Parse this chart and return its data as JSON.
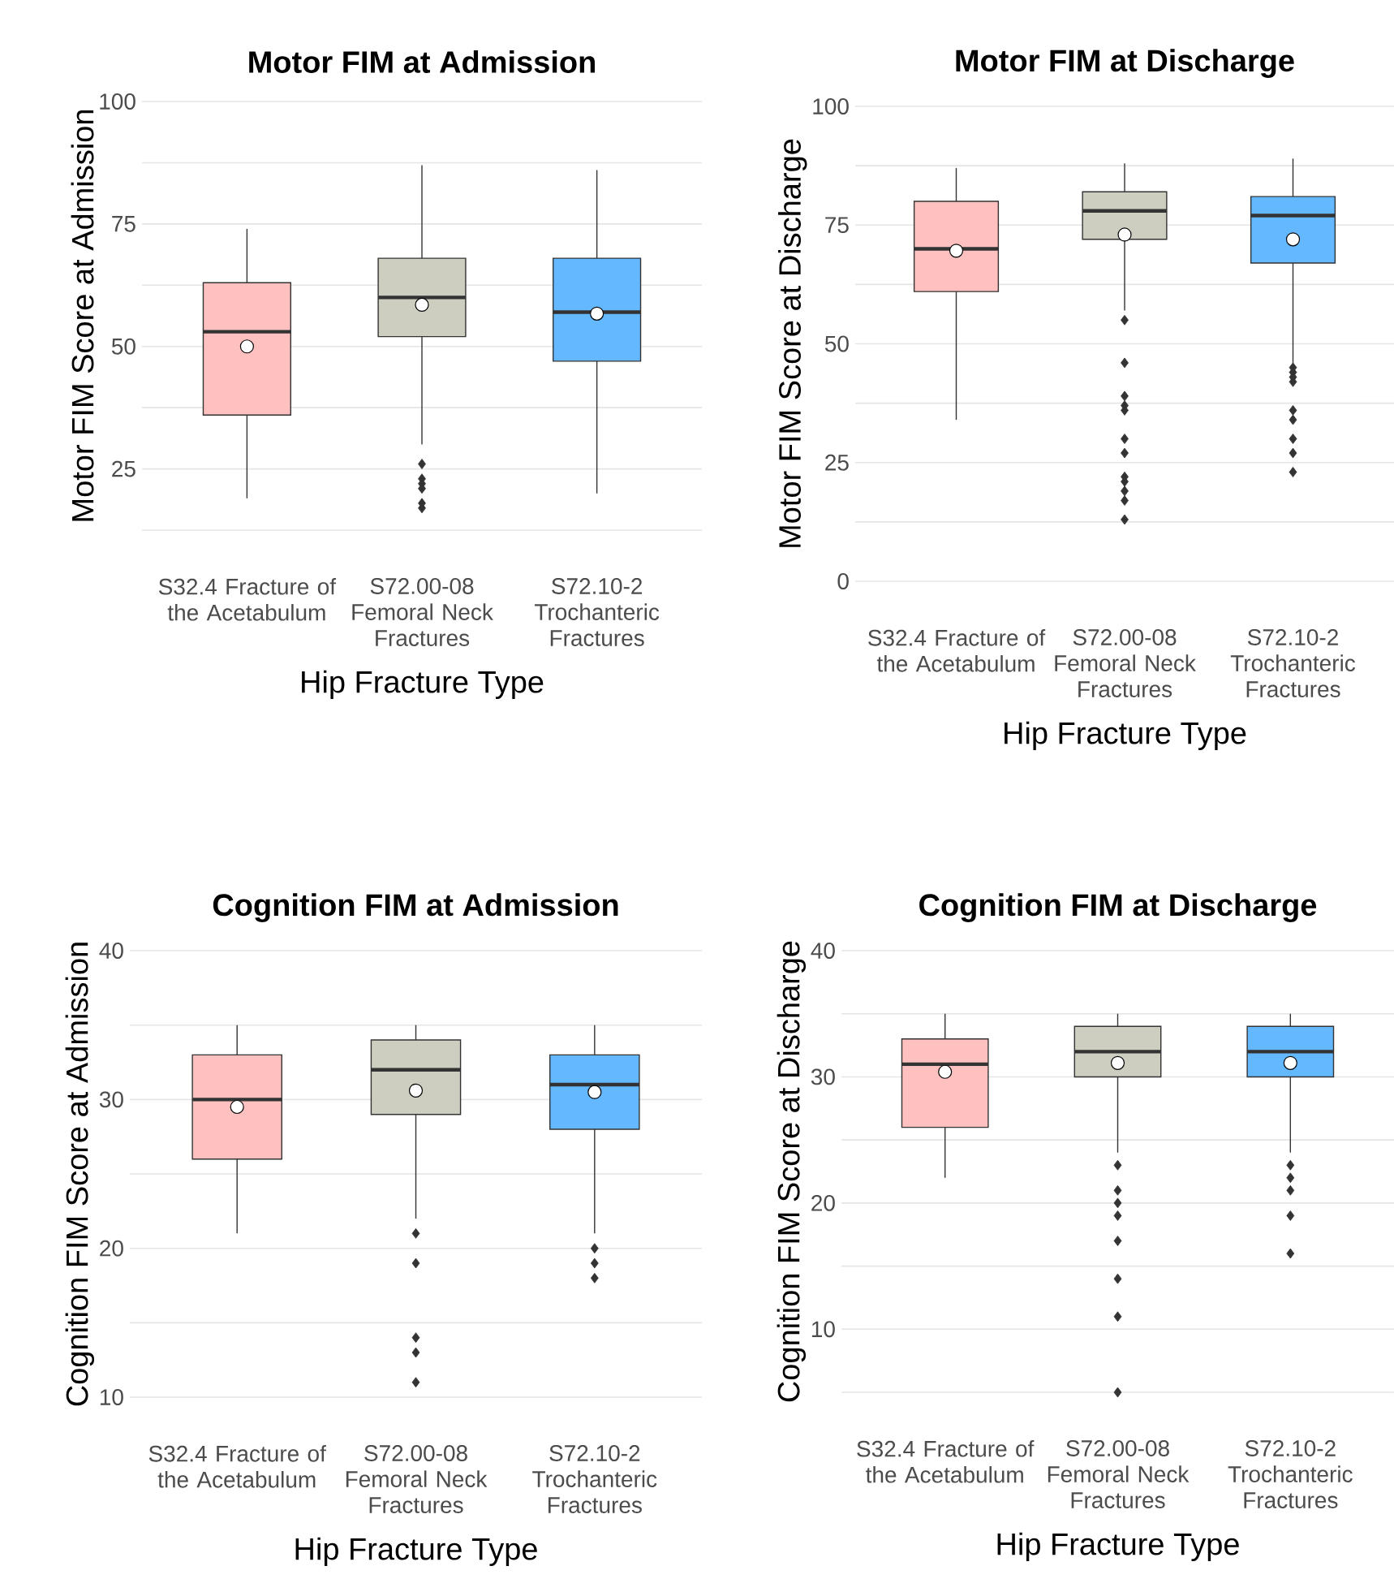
{
  "chart_data": [
    {
      "type": "box",
      "title": "Motor FIM at Admission",
      "xlabel": "Hip Fracture Type",
      "ylabel": "Motor FIM Score at Admission",
      "categories": [
        "S32.4 Fracture of the Acetabulum",
        "S72.00-08 Femoral Neck Fractures",
        "S72.10-2 Trochanteric Fractures"
      ],
      "colors": [
        "#ffc0c0",
        "#cdcdc0",
        "#63b8ff"
      ],
      "grid": "y",
      "marker": "diamond",
      "ylim": [
        12.5,
        100
      ],
      "yticks": [
        {
          "value": 12.5,
          "label": null
        },
        25,
        {
          "value": 37.5,
          "label": null
        },
        50,
        {
          "value": 62.5,
          "label": null
        },
        75,
        {
          "value": 87.5,
          "label": null
        },
        100
      ],
      "boxes": [
        {
          "low": 19,
          "q1": 36,
          "median": 53,
          "q3": 63,
          "high": 74,
          "mean": 50
        },
        {
          "low": 30,
          "q1": 52,
          "median": 60,
          "q3": 68,
          "high": 87,
          "mean": 58.5,
          "outliers": [
            26,
            23,
            22,
            21,
            18,
            17
          ]
        },
        {
          "low": 20,
          "q1": 47,
          "median": 57,
          "q3": 68,
          "high": 86,
          "mean": 56.7
        }
      ]
    },
    {
      "type": "box",
      "title": "Motor FIM at Discharge",
      "xlabel": "Hip Fracture Type",
      "ylabel": "Motor FIM Score at Discharge",
      "categories": [
        "S32.4 Fracture of the Acetabulum",
        "S72.00-08 Femoral Neck Fractures",
        "S72.10-2 Trochanteric Fractures"
      ],
      "colors": [
        "#ffc0c0",
        "#cdcdc0",
        "#63b8ff"
      ],
      "grid": "y",
      "marker": "diamond",
      "ylim": [
        0,
        100
      ],
      "yticks": [
        0,
        {
          "value": 12.5,
          "label": null
        },
        25,
        {
          "value": 37.5,
          "label": null
        },
        50,
        {
          "value": 62.5,
          "label": null
        },
        75,
        {
          "value": 87.5,
          "label": null
        },
        100
      ],
      "boxes": [
        {
          "low": 34,
          "q1": 61,
          "median": 70,
          "q3": 80,
          "high": 87,
          "mean": 69.6
        },
        {
          "low": 57,
          "q1": 72,
          "median": 78,
          "q3": 82,
          "high": 88,
          "mean": 73,
          "outliers": [
            55,
            46,
            39,
            37,
            36,
            30,
            27,
            22,
            21,
            19,
            17,
            13
          ]
        },
        {
          "low": 46,
          "q1": 67,
          "median": 77,
          "q3": 81,
          "high": 89,
          "mean": 72,
          "outliers": [
            45,
            44,
            43,
            42,
            36,
            34,
            30,
            27,
            23
          ]
        }
      ]
    },
    {
      "type": "box",
      "title": "Cognition FIM at Admission",
      "xlabel": "Hip Fracture Type",
      "ylabel": "Cognition FIM Score at Admission",
      "categories": [
        "S32.4 Fracture of the Acetabulum",
        "S72.00-08 Femoral Neck Fractures",
        "S72.10-2 Trochanteric Fractures"
      ],
      "colors": [
        "#ffc0c0",
        "#cdcdc0",
        "#63b8ff"
      ],
      "grid": "y",
      "marker": "diamond",
      "ylim": [
        10,
        40
      ],
      "yticks": [
        10,
        {
          "value": 15,
          "label": null
        },
        20,
        {
          "value": 25,
          "label": null
        },
        30,
        {
          "value": 35,
          "label": null
        },
        40
      ],
      "boxes": [
        {
          "low": 21,
          "q1": 26,
          "median": 30,
          "q3": 33,
          "high": 35,
          "mean": 29.5
        },
        {
          "low": 22,
          "q1": 29,
          "median": 32,
          "q3": 34,
          "high": 35,
          "mean": 30.6,
          "outliers": [
            21,
            19,
            14,
            13,
            11
          ]
        },
        {
          "low": 21,
          "q1": 28,
          "median": 31,
          "q3": 33,
          "high": 35,
          "mean": 30.5,
          "outliers": [
            20,
            19,
            18
          ]
        }
      ]
    },
    {
      "type": "box",
      "title": "Cognition FIM at Discharge",
      "xlabel": "Hip Fracture Type",
      "ylabel": "Cognition FIM Score at Discharge",
      "categories": [
        "S32.4 Fracture of the Acetabulum",
        "S72.00-08 Femoral Neck Fractures",
        "S72.10-2 Trochanteric Fractures"
      ],
      "colors": [
        "#ffc0c0",
        "#cdcdc0",
        "#63b8ff"
      ],
      "grid": "y",
      "marker": "diamond",
      "ylim": [
        5,
        40
      ],
      "yticks": [
        {
          "value": 5,
          "label": null
        },
        10,
        {
          "value": 15,
          "label": null
        },
        20,
        {
          "value": 25,
          "label": null
        },
        30,
        {
          "value": 35,
          "label": null
        },
        40
      ],
      "boxes": [
        {
          "low": 22,
          "q1": 26,
          "median": 31,
          "q3": 33,
          "high": 35,
          "mean": 30.4
        },
        {
          "low": 24,
          "q1": 30,
          "median": 32,
          "q3": 34,
          "high": 35,
          "mean": 31.1,
          "outliers": [
            23,
            21,
            20,
            19,
            17,
            14,
            11,
            5
          ]
        },
        {
          "low": 24,
          "q1": 30,
          "median": 32,
          "q3": 34,
          "high": 35,
          "mean": 31.1,
          "outliers": [
            23,
            22,
            21,
            19,
            16
          ]
        }
      ]
    }
  ]
}
